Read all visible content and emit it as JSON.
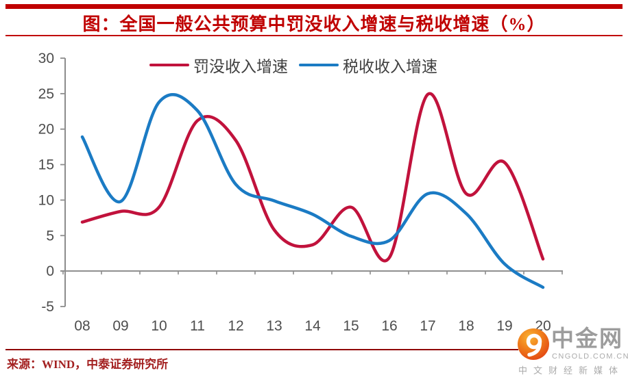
{
  "header": {
    "title": "图：全国一般公共预算中罚没收入增速与税收增速（%）"
  },
  "footer": {
    "source": "来源：WIND，中泰证券研究所"
  },
  "logo": {
    "name": "中金网",
    "domain": "CNGOLD.COM.CN",
    "tagline": "中文财经新媒体",
    "icon": "cngold-swirl-icon"
  },
  "colors": {
    "accent_red": "#C00000",
    "rule_dark_red": "#8F0000",
    "series_red": "#C1123C",
    "series_blue": "#1B7BC4",
    "axis": "#8C8C8C",
    "tick_label": "#4D4D4D",
    "source_text": "#A32020",
    "logo_gray": "#9C9C9C"
  },
  "chart_data": {
    "type": "line",
    "title": "图：全国一般公共预算中罚没收入增速与税收增速（%）",
    "categories": [
      "08",
      "09",
      "10",
      "11",
      "12",
      "13",
      "14",
      "15",
      "16",
      "17",
      "18",
      "19",
      "20"
    ],
    "series": [
      {
        "name": "罚没收入增速",
        "slug": "fines-revenue-growth-line",
        "color": "#C1123C",
        "values": [
          6.9,
          8.4,
          9.0,
          21.2,
          18.4,
          5.8,
          3.7,
          9.0,
          1.9,
          24.9,
          10.9,
          15.3,
          1.7
        ]
      },
      {
        "name": "税收收入增速",
        "slug": "tax-revenue-growth-line",
        "color": "#1B7BC4",
        "values": [
          18.9,
          9.8,
          23.8,
          22.6,
          12.2,
          9.9,
          8.0,
          4.9,
          4.3,
          10.9,
          8.1,
          1.0,
          -2.3
        ]
      }
    ],
    "xlabel": "",
    "ylabel": "",
    "ylim": [
      -5,
      30
    ],
    "yticks": [
      30,
      25,
      20,
      15,
      10,
      5,
      0,
      -5
    ],
    "grid": false,
    "legend_position": "top",
    "smooth": true
  }
}
